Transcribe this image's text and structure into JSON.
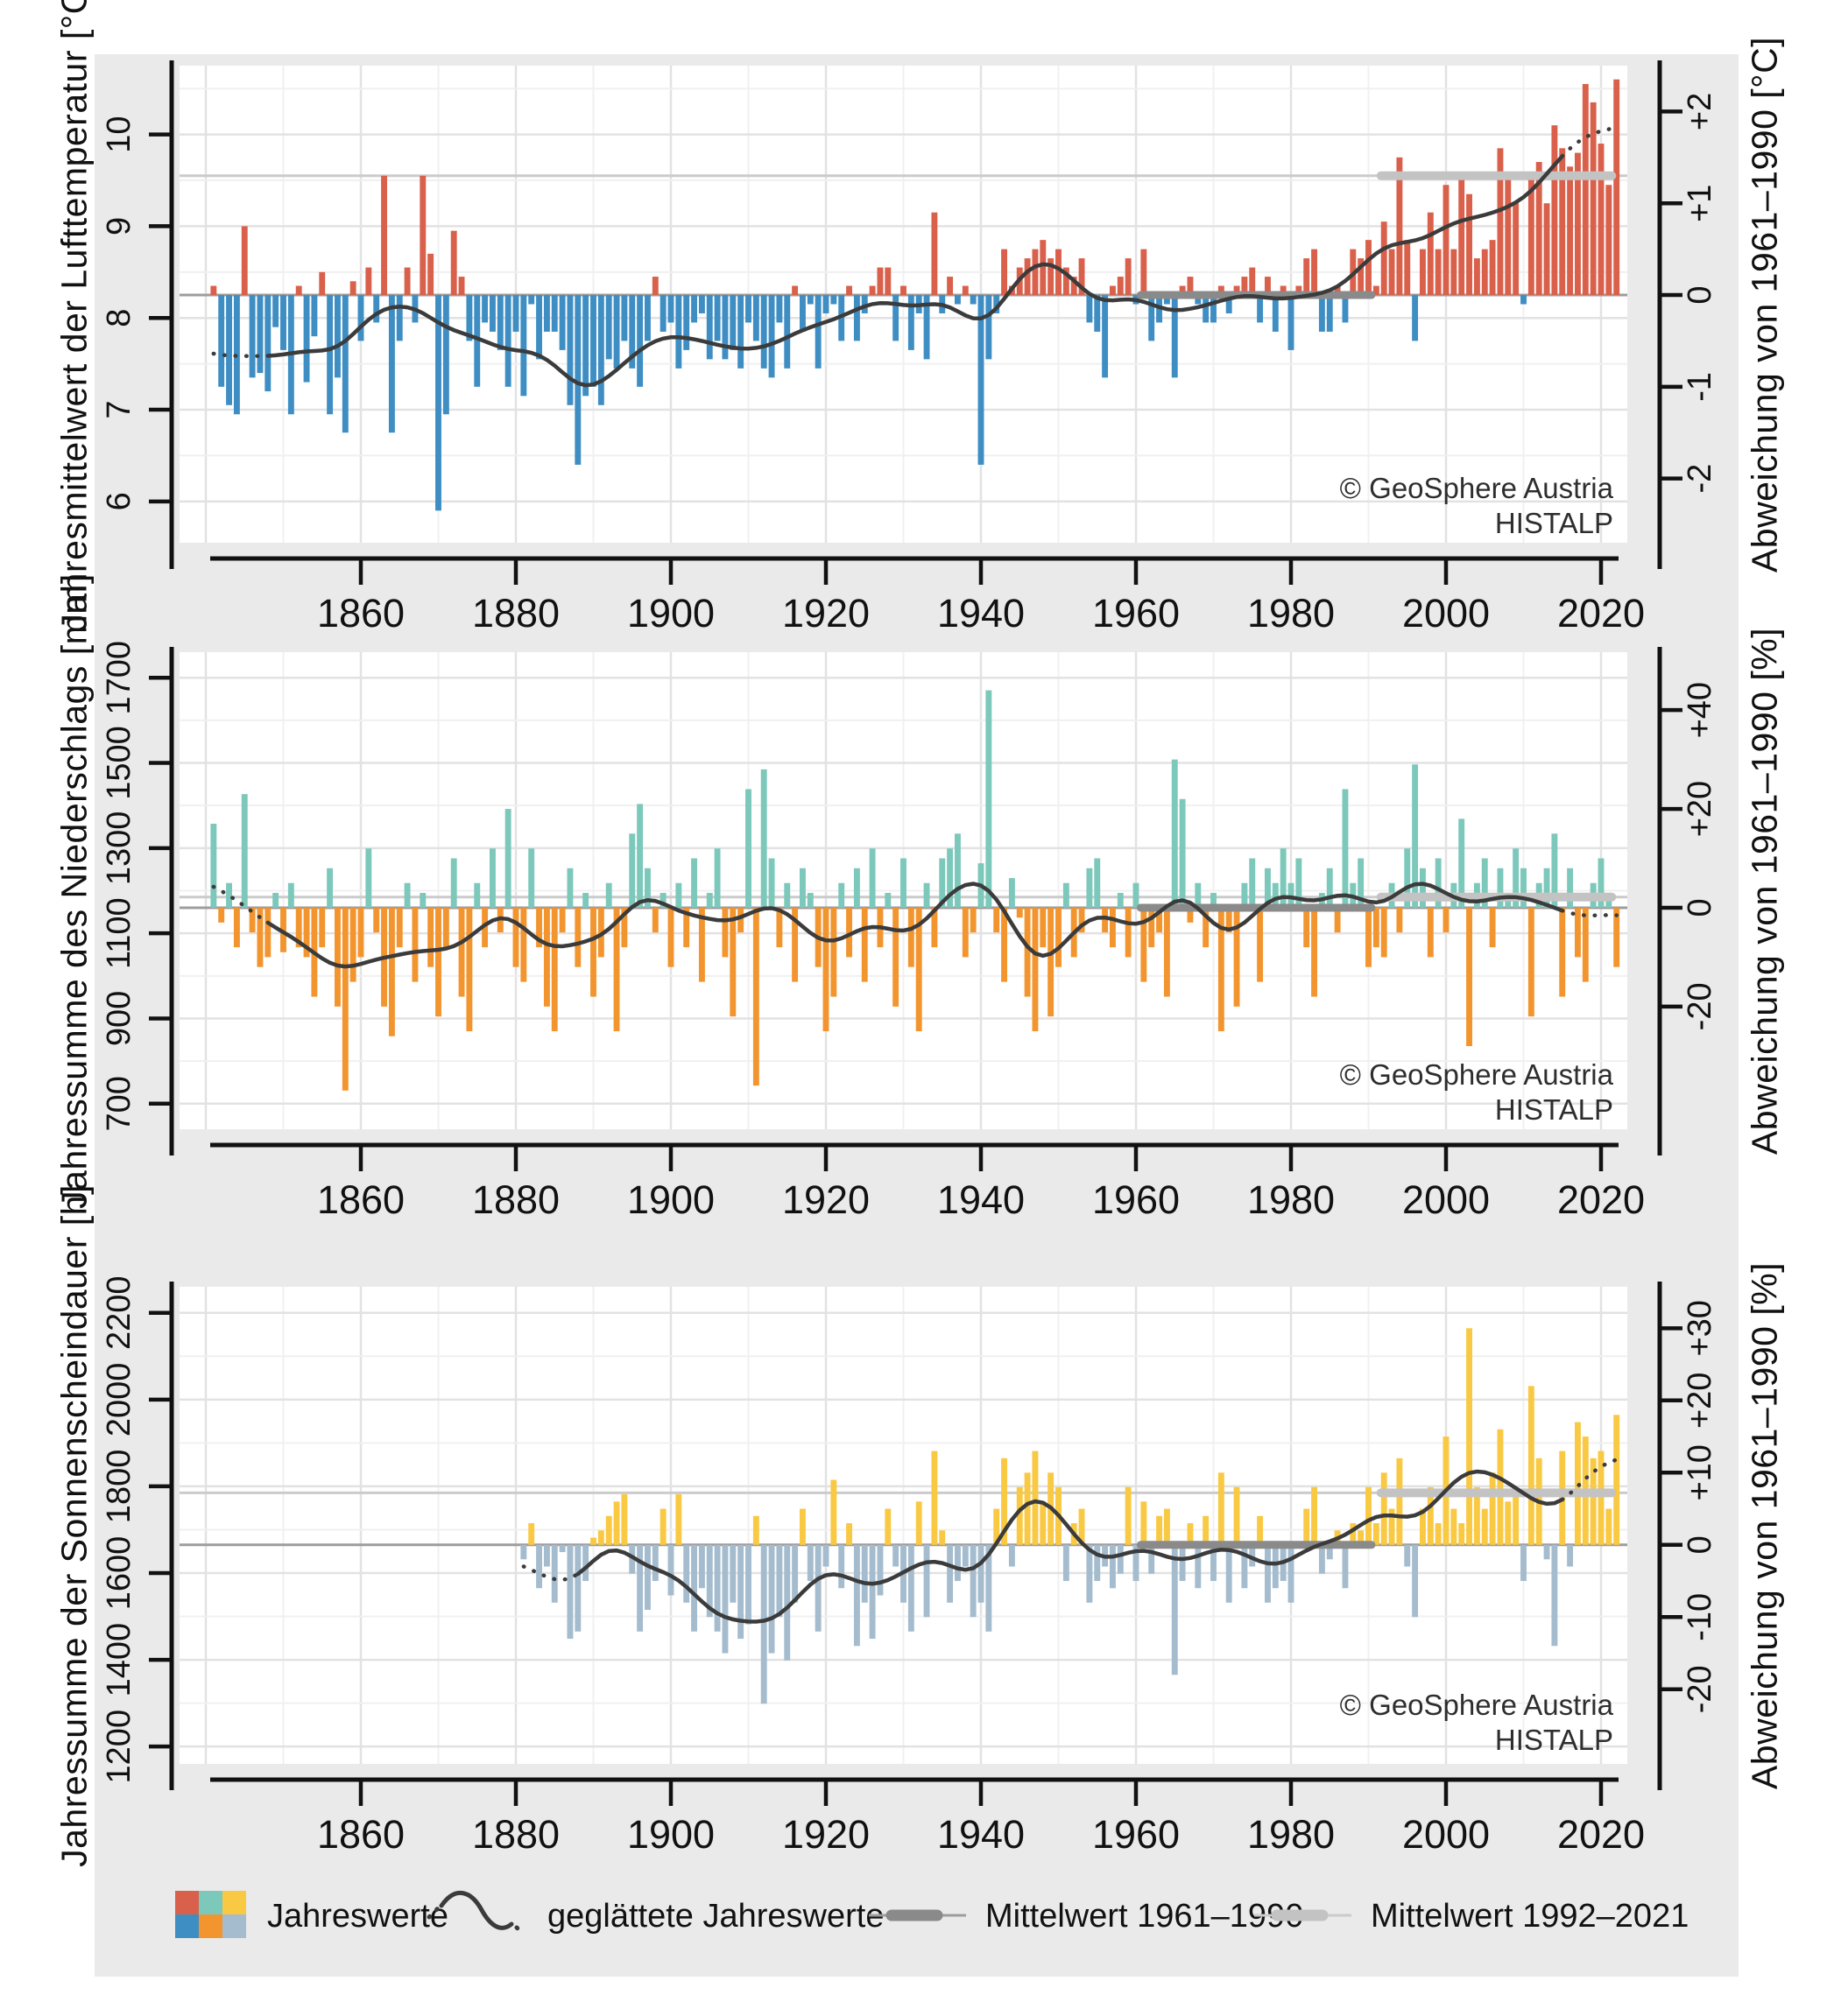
{
  "figure": {
    "credit_line1": "© GeoSphere Austria",
    "credit_line2": "HISTALP",
    "bg": "#eaeaea",
    "panel_bg": "#ffffff"
  },
  "colors": {
    "grid_major": "#e2e2e2",
    "grid_minor": "#f0f0f0",
    "axis": "#111111",
    "tick_text": "#111111",
    "smoothed": "#3b3b3b",
    "mean6190_thin": "#9d9d9d",
    "mean6190_thick": "#8a8a8a",
    "mean9221_thin": "#cbcbcb",
    "mean9221_thick": "#c3c3c3",
    "temp_pos": "#d9604b",
    "temp_neg": "#3e8ec4",
    "precip_pos": "#7cc8bb",
    "precip_neg": "#f2952f",
    "sun_pos": "#f9c943",
    "sun_neg": "#a4bcce"
  },
  "legend": {
    "annual_label": "Jahreswerte",
    "smoothed_label": "geglättete Jahreswerte",
    "mean6190_label": "Mittelwert 1961–1990",
    "mean9221_label": "Mittelwert 1992–2021"
  },
  "x_axis": {
    "ticks": [
      1860,
      1880,
      1900,
      1920,
      1940,
      1960,
      1980,
      2000,
      2020
    ]
  },
  "chart_data": [
    {
      "type": "bar",
      "id": "temperature",
      "title_left": "Jahresmittelwert der Lufttemperatur [°C]",
      "title_right": "Abweichung von 1961–1990 [°C]",
      "unit": "°C",
      "value_encoding": "anomaly_absolute_offset",
      "baseline_1961_1990": 8.25,
      "mean_1992_2021": 9.55,
      "ylim": [
        5.55,
        10.75
      ],
      "left_ticks": [
        6,
        7,
        8,
        9,
        10
      ],
      "right_ticks": [
        {
          "label": "-2",
          "at": 6.25
        },
        {
          "label": "-1",
          "at": 7.25
        },
        {
          "label": "0",
          "at": 8.25
        },
        {
          "label": "+1",
          "at": 9.25
        },
        {
          "label": "+2",
          "at": 10.25
        }
      ],
      "start_year": 1841,
      "end_year": 2022,
      "values": [
        0.1,
        -1,
        -1.2,
        -1.3,
        0.75,
        -0.9,
        -0.85,
        -1.05,
        -0.35,
        -0.6,
        -1.3,
        0.1,
        -0.95,
        -0.45,
        0.25,
        -1.3,
        -0.9,
        -1.5,
        0.15,
        -0.5,
        0.3,
        -0.3,
        1.3,
        -1.5,
        -0.5,
        0.3,
        -0.3,
        1.3,
        0.45,
        -2.35,
        -1.3,
        0.7,
        0.2,
        -0.5,
        -1,
        -0.3,
        -0.4,
        -0.6,
        -1,
        -0.4,
        -1.1,
        -0.1,
        -0.7,
        -0.4,
        -0.4,
        -0.6,
        -1.2,
        -1.85,
        -1.1,
        -1,
        -1.2,
        -0.7,
        -0.8,
        -0.5,
        -0.8,
        -1,
        -0.5,
        0.2,
        -0.4,
        -0.3,
        -0.8,
        -0.6,
        -0.3,
        -0.2,
        -0.7,
        -0.5,
        -0.7,
        -0.6,
        -0.8,
        -0.3,
        -0.5,
        -0.8,
        -0.9,
        -0.3,
        -0.8,
        0.1,
        -0.4,
        -0.1,
        -0.8,
        -0.2,
        -0.1,
        -0.5,
        0.1,
        -0.5,
        -0.2,
        0.1,
        0.3,
        0.3,
        -0.5,
        0.1,
        -0.6,
        -0.2,
        -0.7,
        0.9,
        -0.2,
        0.2,
        -0.1,
        0.1,
        -0.1,
        -1.85,
        -0.7,
        -0.2,
        0.5,
        0.1,
        0.3,
        0.4,
        0.5,
        0.6,
        0.4,
        0.5,
        0.3,
        0.2,
        0.4,
        -0.3,
        -0.4,
        -0.9,
        0.1,
        0.2,
        0.4,
        -0.1,
        0.5,
        -0.5,
        -0.3,
        -0.1,
        -0.9,
        0.1,
        0.2,
        -0.1,
        -0.3,
        -0.3,
        0.1,
        -0.2,
        0.1,
        0.2,
        0.3,
        -0.3,
        0.2,
        -0.4,
        0.1,
        -0.6,
        0.1,
        0.4,
        0.5,
        -0.4,
        -0.4,
        0.1,
        -0.3,
        0.5,
        0.4,
        0.6,
        0.1,
        0.8,
        0.5,
        1.5,
        0.6,
        -0.5,
        0.5,
        0.9,
        0.5,
        1.2,
        0.5,
        1.3,
        1.1,
        0.4,
        0.5,
        0.6,
        1.6,
        1.3,
        1,
        -0.1,
        1.3,
        1.45,
        1,
        1.85,
        1.6,
        1.4,
        1.55,
        2.3,
        2.1,
        1.65,
        1.2,
        2.35
      ]
    },
    {
      "type": "bar",
      "id": "precipitation",
      "title_left": "Jahressumme des Niederschlags [mm]",
      "title_right": "Abweichung von 1961–1990 [%]",
      "unit": "%",
      "value_encoding": "anomaly_percent_of_baseline",
      "baseline_1961_1990": 1160,
      "mean_1992_2021": 1185,
      "ylim": [
        640,
        1760
      ],
      "left_ticks": [
        700,
        900,
        1100,
        1300,
        1500,
        1700
      ],
      "right_ticks": [
        {
          "label": "-20",
          "at": 928
        },
        {
          "label": "0",
          "at": 1160
        },
        {
          "label": "+20",
          "at": 1392
        },
        {
          "label": "+40",
          "at": 1624
        }
      ],
      "start_year": 1841,
      "end_year": 2022,
      "values": [
        17,
        -3,
        5,
        -8,
        23,
        -5,
        -12,
        -10,
        3,
        -9,
        5,
        -8,
        -10,
        -18,
        -8,
        8,
        -20,
        -37,
        -15,
        -10,
        12,
        -5,
        -20,
        -26,
        -8,
        5,
        -15,
        3,
        -12,
        -22,
        -8,
        10,
        -18,
        -25,
        5,
        -8,
        12,
        -5,
        20,
        -12,
        -15,
        12,
        -8,
        -20,
        -25,
        -5,
        8,
        -12,
        3,
        -18,
        -10,
        5,
        -25,
        -8,
        15,
        21,
        8,
        -5,
        3,
        -12,
        5,
        -8,
        10,
        -15,
        3,
        12,
        -10,
        -22,
        -5,
        24,
        -36,
        28,
        10,
        -8,
        5,
        -15,
        8,
        3,
        -12,
        -25,
        -18,
        5,
        -10,
        8,
        -15,
        12,
        -8,
        3,
        -20,
        10,
        -12,
        -25,
        5,
        -8,
        10,
        12,
        15,
        -10,
        -5,
        9,
        44,
        -5,
        -15,
        6,
        -2,
        -18,
        -25,
        -8,
        -22,
        -12,
        5,
        -10,
        -5,
        8,
        10,
        -5,
        -8,
        3,
        -10,
        5,
        -15,
        -8,
        -5,
        -18,
        30,
        22,
        -3,
        5,
        -8,
        3,
        -25,
        -5,
        -20,
        5,
        10,
        -15,
        8,
        5,
        12,
        5,
        10,
        -8,
        -18,
        3,
        8,
        -5,
        24,
        5,
        10,
        -12,
        -8,
        -10,
        5,
        -5,
        12,
        29,
        8,
        -10,
        10,
        -5,
        5,
        18,
        -28,
        5,
        10,
        -8,
        8,
        3,
        12,
        8,
        -22,
        5,
        8,
        15,
        -18,
        8,
        -10,
        -15,
        5,
        10,
        3,
        -12
      ]
    },
    {
      "type": "bar",
      "id": "sunshine",
      "title_left": "Jahressumme der Sonnenscheindauer [h]",
      "title_right": "Abweichung von 1961–1990 [%]",
      "unit": "%",
      "value_encoding": "anomaly_percent_of_baseline",
      "baseline_1961_1990": 1665,
      "mean_1992_2021": 1785,
      "ylim": [
        1160,
        2260
      ],
      "left_ticks": [
        1200,
        1400,
        1600,
        1800,
        2000,
        2200
      ],
      "right_ticks": [
        {
          "label": "-20",
          "at": 1332
        },
        {
          "label": "-10",
          "at": 1498.5
        },
        {
          "label": "0",
          "at": 1665
        },
        {
          "label": "+10",
          "at": 1831.5
        },
        {
          "label": "+20",
          "at": 1998
        },
        {
          "label": "+30",
          "at": 2164.5
        }
      ],
      "start_year": 1881,
      "end_year": 2022,
      "values": [
        -2,
        3,
        -6,
        -3,
        -8,
        -1,
        -13,
        -12,
        -5,
        1,
        2,
        4,
        6,
        7,
        -4,
        -12,
        -9,
        -5,
        5,
        -7,
        7,
        -8,
        -12,
        -6,
        -10,
        -12,
        -15,
        -8,
        -13,
        -11,
        4,
        -22,
        -15,
        -10,
        -16,
        -8,
        5,
        -5,
        -12,
        -3,
        9,
        -6,
        3,
        -14,
        -8,
        -13,
        -7,
        5,
        -3,
        -8,
        -12,
        6,
        -10,
        13,
        2,
        -8,
        -5,
        -3,
        -10,
        -8,
        -12,
        5,
        12,
        -3,
        8,
        10,
        13,
        6,
        10,
        8,
        -5,
        3,
        5,
        -8,
        -5,
        -3,
        -6,
        -4,
        8,
        -5,
        6,
        -4,
        4,
        5,
        -18,
        -5,
        3,
        -6,
        4,
        -5,
        10,
        -8,
        8,
        -6,
        -3,
        4,
        -8,
        -6,
        -5,
        -8,
        0,
        5,
        8,
        -4,
        -2,
        2,
        -6,
        3,
        2,
        8,
        3,
        10,
        5,
        12,
        -3,
        -10,
        5,
        8,
        3,
        15,
        5,
        3,
        30,
        8,
        5,
        10,
        16,
        6,
        8,
        -5,
        22,
        12,
        -2,
        -14,
        13,
        -3,
        17,
        15,
        12,
        13,
        5,
        18
      ]
    }
  ]
}
